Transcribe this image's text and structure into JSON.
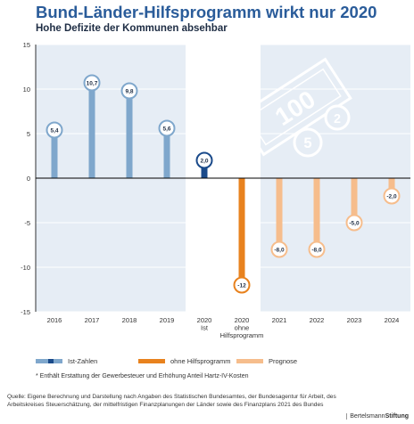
{
  "title": "Bund-Länder-Hilfsprogramm wirkt nur 2020",
  "subtitle": "Hohe Defizite der Kommunen absehbar",
  "footnote": "* Enthält Erstattung der Gewerbesteuer und Erhöhung Anteil Hartz-IV-Kosten",
  "source": "Quelle: Eigene Berechnung und Darstellung nach Angaben des Statistischen Bundesamtes, der Bundesagentur für Arbeit, des Arbeitskreises Steuerschätzung, der mittelfristigen Finanzplanungen der Länder sowie des Finanzplans 2021 des Bundes",
  "brand": {
    "part1": "Bertelsmann",
    "part2": "Stiftung"
  },
  "decoration": {
    "banknote_label": "100",
    "coin_labels": [
      "5",
      "2"
    ]
  },
  "chart_data": {
    "type": "bar",
    "ylim": [
      -15,
      15
    ],
    "yticks": [
      15,
      10,
      5,
      0,
      -5,
      -10,
      -15
    ],
    "grid": true,
    "legend_position": "bottom",
    "categories": [
      "2016",
      "2017",
      "2018",
      "2019",
      "2020\nIst",
      "2020\nohne\nHilfsprogramm",
      "2021",
      "2022",
      "2023",
      "2024"
    ],
    "values": [
      5.4,
      10.7,
      9.8,
      5.6,
      2.0,
      -12,
      -8.0,
      -8.0,
      -5.0,
      -2.0
    ],
    "labels": [
      "5,4",
      "10,7",
      "9,8",
      "5,6",
      "2,0",
      "-12",
      "-8,0",
      "-8,0",
      "-5,0",
      "-2,0"
    ],
    "groups": [
      "ist",
      "ist",
      "ist",
      "ist",
      "ist2020",
      "ohne",
      "prognose",
      "prognose",
      "prognose",
      "prognose"
    ],
    "highlight_categories": [
      "2020\nIst",
      "2020\nohne\nHilfsprogramm"
    ],
    "colors": {
      "ist": "#7fa7cc",
      "ist2020": "#1a4a8a",
      "ohne": "#e8821e",
      "prognose": "#f6bd8c",
      "background": "#e6edf5",
      "highlight": "#ffffff",
      "grid": "#ffffff"
    },
    "legend": [
      {
        "label": "Ist-Zahlen",
        "group": "ist"
      },
      {
        "label": "ohne Hilfsprogramm",
        "group": "ohne"
      },
      {
        "label": "Prognose",
        "group": "prognose"
      }
    ]
  }
}
